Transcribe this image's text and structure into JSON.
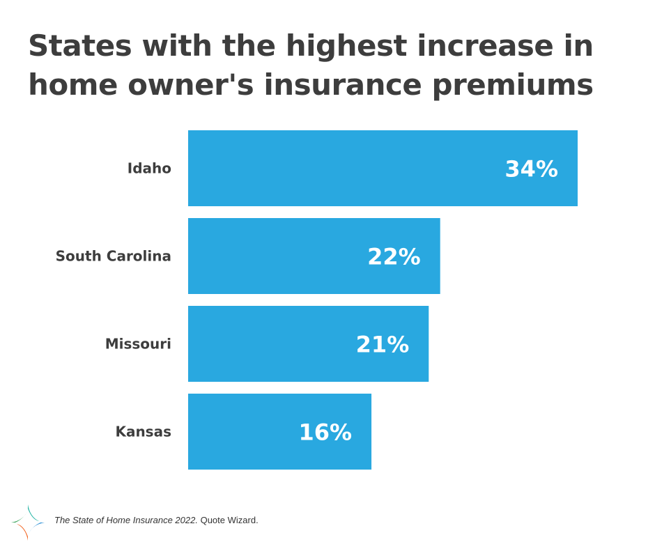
{
  "chart_data": {
    "type": "bar",
    "orientation": "horizontal",
    "title": "States with the highest increase in home owner's insurance premiums",
    "categories": [
      "Idaho",
      "South Carolina",
      "Missouri",
      "Kansas"
    ],
    "values": [
      34,
      22,
      21,
      16
    ],
    "data_labels": [
      "34%",
      "22%",
      "21%",
      "16%"
    ],
    "unit": "%",
    "xlim": [
      0,
      34
    ],
    "grid": false,
    "bar_color": "#29a8e0"
  },
  "source": {
    "italic": "The State of Home Insurance 2022.",
    "normal": "Quote Wizard."
  },
  "logo": {
    "icon": "four-point-star-logo",
    "colors": [
      "#1bb1a0",
      "#2a8fd6",
      "#f26522",
      "#3aa35a"
    ]
  }
}
